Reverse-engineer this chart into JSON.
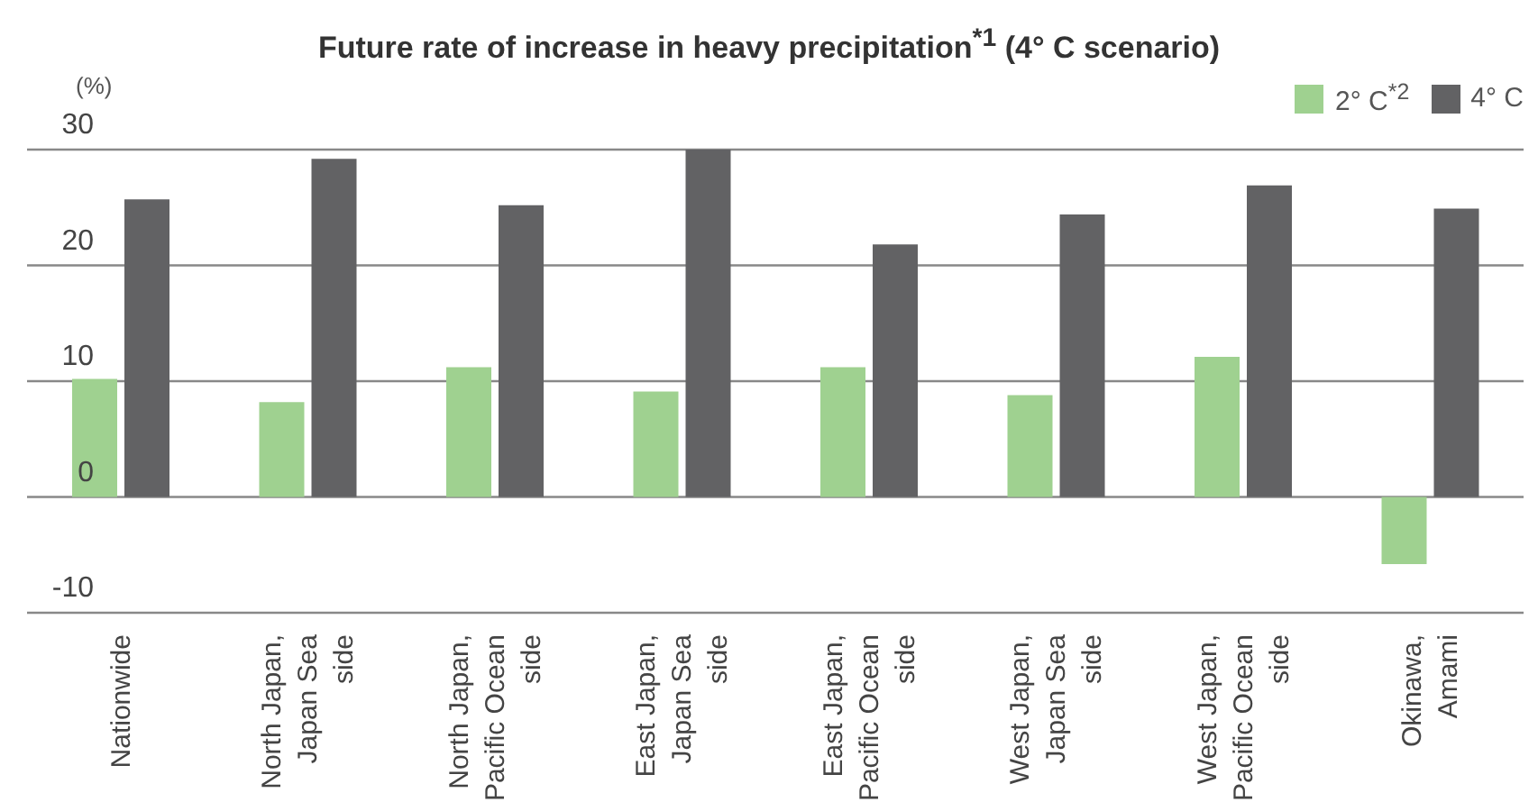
{
  "chart_data": {
    "type": "bar",
    "title": "Future rate of increase in heavy precipitation$^{*1}$ (4° C scenario)",
    "ylabel": "(%)",
    "categories": [
      "Nationwide",
      "North Japan,\nJapan Sea\nside",
      "North Japan,\nPacific Ocean\nside",
      "East Japan,\nJapan Sea\nside",
      "East Japan,\nPacific Ocean\nside",
      "West Japan,\nJapan Sea\nside",
      "West Japan,\nPacific Ocean\nside",
      "Okinawa,\nAmami"
    ],
    "series": [
      {
        "name": "2° C$^{*2}$",
        "color": "#9fd190",
        "values": [
          10.2,
          8.2,
          11.2,
          9.1,
          11.2,
          8.8,
          12.1,
          -5.8
        ]
      },
      {
        "name": "4° C",
        "color": "#626264",
        "values": [
          25.7,
          29.2,
          25.2,
          30.0,
          21.8,
          24.4,
          26.9,
          24.9
        ]
      }
    ],
    "ylim": [
      -10,
      30
    ],
    "yticks": [
      -10,
      0,
      10,
      20,
      30
    ],
    "grid": "y",
    "legend": "top right"
  }
}
